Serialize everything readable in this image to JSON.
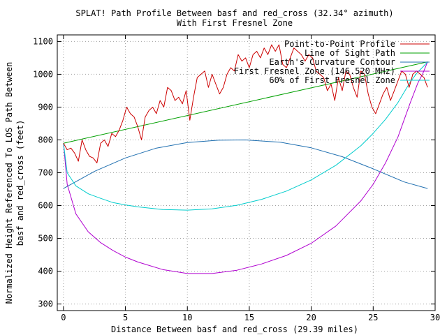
{
  "chart_data": {
    "type": "line",
    "title": "SPLAT! Path Profile Between basf and red_cross (32.34° azimuth)",
    "subtitle": "With First Fresnel Zone",
    "xlabel": "Distance Between basf and red_cross (29.39 miles)",
    "ylabel_line1": "Normalized Height Referenced To LOS Path Between",
    "ylabel_line2": "basf and red_cross (feet)",
    "xlim": [
      -0.5,
      30
    ],
    "ylim": [
      280,
      1120
    ],
    "xticks": [
      "0",
      "5",
      "10",
      "15",
      "20",
      "25",
      "30"
    ],
    "yticks": [
      "300",
      "400",
      "500",
      "600",
      "700",
      "800",
      "900",
      "1000",
      "1100"
    ],
    "xtick_values": [
      0,
      5,
      10,
      15,
      20,
      25,
      30
    ],
    "ytick_values": [
      300,
      400,
      500,
      600,
      700,
      800,
      900,
      1000,
      1100
    ],
    "grid": true,
    "legend_position": "top-right",
    "series": [
      {
        "name": "Point-to-Point Profile",
        "color": "#cc0000",
        "x": [
          0,
          0.3,
          0.6,
          0.9,
          1.2,
          1.5,
          1.8,
          2.1,
          2.4,
          2.7,
          3.0,
          3.3,
          3.6,
          3.9,
          4.2,
          4.5,
          4.8,
          5.1,
          5.4,
          5.7,
          6.0,
          6.3,
          6.6,
          6.9,
          7.2,
          7.5,
          7.8,
          8.1,
          8.4,
          8.7,
          9.0,
          9.3,
          9.6,
          9.9,
          10.2,
          10.5,
          10.8,
          11.1,
          11.4,
          11.7,
          12.0,
          12.3,
          12.6,
          12.9,
          13.2,
          13.5,
          13.8,
          14.1,
          14.4,
          14.7,
          15.0,
          15.3,
          15.6,
          15.9,
          16.2,
          16.5,
          16.8,
          17.1,
          17.4,
          17.7,
          18.0,
          18.3,
          18.6,
          18.9,
          19.2,
          19.5,
          19.8,
          20.1,
          20.4,
          20.7,
          21.0,
          21.3,
          21.6,
          21.9,
          22.2,
          22.5,
          22.8,
          23.1,
          23.4,
          23.7,
          24.0,
          24.3,
          24.6,
          24.9,
          25.2,
          25.5,
          25.8,
          26.1,
          26.4,
          26.7,
          27.0,
          27.3,
          27.6,
          27.9,
          28.2,
          28.5,
          28.8,
          29.1,
          29.39
        ],
        "y": [
          790,
          770,
          775,
          760,
          735,
          800,
          770,
          750,
          745,
          730,
          790,
          800,
          780,
          820,
          810,
          830,
          860,
          900,
          880,
          870,
          840,
          800,
          870,
          890,
          900,
          880,
          920,
          900,
          960,
          950,
          920,
          930,
          910,
          950,
          860,
          930,
          990,
          1000,
          1010,
          960,
          1000,
          970,
          940,
          960,
          1000,
          1020,
          1010,
          1060,
          1040,
          1050,
          1020,
          1060,
          1070,
          1050,
          1080,
          1060,
          1090,
          1070,
          1090,
          1030,
          1020,
          1050,
          1080,
          1070,
          1060,
          1040,
          1060,
          1050,
          1010,
          1000,
          990,
          950,
          970,
          920,
          990,
          950,
          1010,
          1000,
          960,
          930,
          1010,
          1000,
          940,
          900,
          880,
          910,
          940,
          960,
          920,
          950,
          980,
          1010,
          1000,
          960,
          1000,
          1010,
          1000,
          990,
          960
        ]
      },
      {
        "name": "Line of Sight Path",
        "color": "#00a000",
        "x": [
          0,
          29.39
        ],
        "y": [
          790,
          1038
        ]
      },
      {
        "name": "Earth's Curvature Contour",
        "color": "#1f6fb0",
        "x": [
          0,
          2.5,
          5,
          7.5,
          10,
          12.5,
          14.7,
          17.5,
          20,
          22.5,
          25,
          27.5,
          29.39
        ],
        "y": [
          652,
          704,
          745,
          775,
          792,
          799,
          800,
          793,
          776,
          749,
          712,
          672,
          652
        ]
      },
      {
        "name": "First Fresnel Zone (146.520 MHz)",
        "color": "#b000d0",
        "x": [
          0,
          0.3,
          1,
          2,
          3,
          4,
          5,
          6,
          8,
          10,
          12,
          14,
          16,
          18,
          20,
          22,
          24,
          25,
          26,
          27,
          28,
          28.6,
          29.0,
          29.39
        ],
        "y": [
          790,
          665,
          575,
          520,
          487,
          463,
          443,
          428,
          405,
          393,
          393,
          403,
          422,
          448,
          485,
          538,
          614,
          665,
          730,
          809,
          914,
          973,
          1002,
          1038
        ]
      },
      {
        "name": "60% of First Fresnel Zone",
        "color": "#00cccc",
        "x": [
          0,
          0.3,
          1,
          2,
          3,
          4,
          5,
          6,
          8,
          10,
          12,
          14,
          16,
          18,
          20,
          22,
          24,
          25,
          26,
          27,
          28,
          28.6,
          29.0,
          29.39
        ],
        "y": [
          790,
          700,
          660,
          636,
          622,
          609,
          602,
          596,
          588,
          586,
          590,
          601,
          619,
          644,
          678,
          723,
          782,
          820,
          863,
          914,
          977,
          1007,
          1022,
          1038
        ]
      }
    ]
  }
}
